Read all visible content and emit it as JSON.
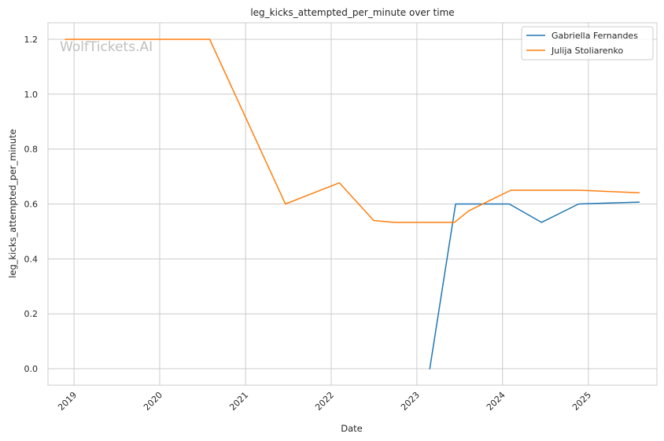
{
  "chart_data": {
    "type": "line",
    "title": "leg_kicks_attempted_per_minute over time",
    "xlabel": "Date",
    "ylabel": "leg_kicks_attempted_per_minute",
    "watermark": "WolfTickets.AI",
    "x_ticks": [
      "2019",
      "2020",
      "2021",
      "2022",
      "2023",
      "2024",
      "2025"
    ],
    "y_ticks": [
      "0.0",
      "0.2",
      "0.4",
      "0.6",
      "0.8",
      "1.0",
      "1.2"
    ],
    "xlim": [
      "2018-09-12",
      "2025-10-20"
    ],
    "ylim": [
      -0.06,
      1.26
    ],
    "grid": true,
    "legend_position": "top-right",
    "series": [
      {
        "name": "Gabriella Fernandes",
        "color": "#1f77b4",
        "points": [
          {
            "x": "2023-02-25",
            "y": 0.0
          },
          {
            "x": "2023-06-15",
            "y": 0.6
          },
          {
            "x": "2024-01-30",
            "y": 0.6
          },
          {
            "x": "2024-06-15",
            "y": 0.533
          },
          {
            "x": "2024-11-20",
            "y": 0.6
          },
          {
            "x": "2025-08-05",
            "y": 0.607
          }
        ]
      },
      {
        "name": "Julija Stoliarenko",
        "color": "#ff7f0e",
        "points": [
          {
            "x": "2018-11-25",
            "y": 1.2
          },
          {
            "x": "2020-08-01",
            "y": 1.2
          },
          {
            "x": "2021-06-20",
            "y": 0.6
          },
          {
            "x": "2022-02-05",
            "y": 0.677
          },
          {
            "x": "2022-07-01",
            "y": 0.54
          },
          {
            "x": "2022-09-25",
            "y": 0.533
          },
          {
            "x": "2023-06-10",
            "y": 0.533
          },
          {
            "x": "2023-08-10",
            "y": 0.575
          },
          {
            "x": "2024-02-05",
            "y": 0.65
          },
          {
            "x": "2024-11-25",
            "y": 0.65
          },
          {
            "x": "2025-08-05",
            "y": 0.641
          }
        ]
      }
    ]
  }
}
